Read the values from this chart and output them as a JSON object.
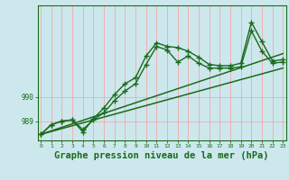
{
  "background_color": "#cce8ed",
  "plot_bg_color": "#cce8ed",
  "grid_color": "#ff9999",
  "line_color": "#1a6b1a",
  "xlabel": "Graphe pression niveau de la mer (hPa)",
  "xlabel_fontsize": 7.5,
  "yticks": [
    989,
    990
  ],
  "xticks": [
    0,
    1,
    2,
    3,
    4,
    5,
    6,
    7,
    8,
    9,
    10,
    11,
    12,
    13,
    14,
    15,
    16,
    17,
    18,
    19,
    20,
    21,
    22,
    23
  ],
  "ylim": [
    988.2,
    993.8
  ],
  "xlim": [
    -0.3,
    23.3
  ],
  "series1": [
    988.45,
    988.85,
    989.0,
    989.05,
    988.65,
    989.05,
    989.35,
    989.85,
    990.25,
    990.55,
    991.35,
    992.1,
    991.95,
    991.45,
    991.7,
    991.4,
    991.2,
    991.2,
    991.2,
    991.25,
    992.75,
    991.9,
    991.4,
    991.45
  ],
  "series2": [
    988.45,
    988.85,
    989.0,
    989.05,
    988.55,
    989.1,
    989.55,
    990.1,
    990.55,
    990.8,
    991.7,
    992.25,
    992.1,
    992.05,
    991.9,
    991.65,
    991.35,
    991.3,
    991.3,
    991.4,
    993.1,
    992.3,
    991.5,
    991.55
  ],
  "series3_x": [
    0,
    23
  ],
  "series3_y": [
    988.45,
    991.8
  ],
  "series4_x": [
    0,
    23
  ],
  "series4_y": [
    988.45,
    991.2
  ]
}
